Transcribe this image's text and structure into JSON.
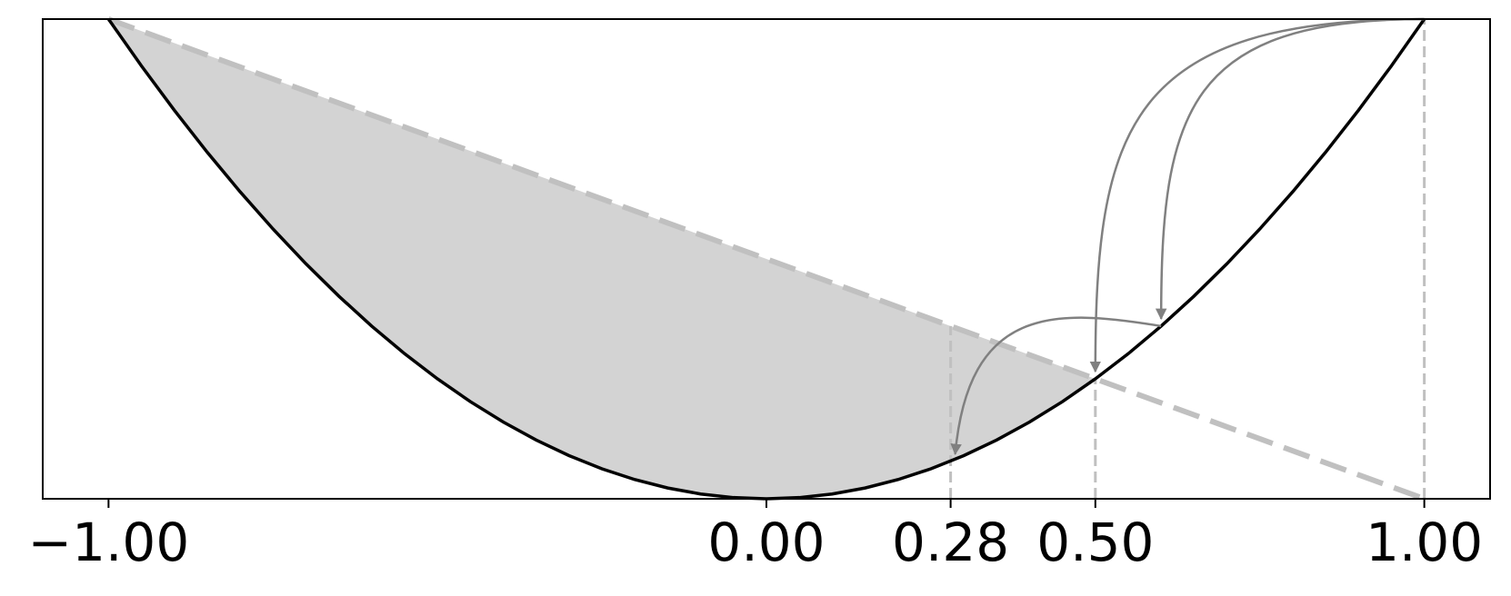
{
  "chart_data": {
    "type": "line",
    "x": [
      -1,
      -0.95,
      -0.9,
      -0.85,
      -0.8,
      -0.75,
      -0.7,
      -0.65,
      -0.6,
      -0.55,
      -0.5,
      -0.45,
      -0.4,
      -0.35,
      -0.3,
      -0.25,
      -0.2,
      -0.15,
      -0.1,
      -0.05,
      0,
      0.05,
      0.1,
      0.15,
      0.2,
      0.25,
      0.3,
      0.35,
      0.4,
      0.45,
      0.5,
      0.55,
      0.6,
      0.65,
      0.7,
      0.75,
      0.8,
      0.85,
      0.9,
      0.95,
      1
    ],
    "series": [
      {
        "color": "#000000",
        "values": [
          1,
          0.9025,
          0.81,
          0.7225,
          0.64,
          0.5625,
          0.49,
          0.4225,
          0.36,
          0.3025,
          0.25,
          0.2025,
          0.16,
          0.1225,
          0.09,
          0.0625,
          0.04,
          0.0225,
          0.01,
          0.0025,
          0,
          0.0025,
          0.01,
          0.0225,
          0.04,
          0.0625,
          0.09,
          0.1225,
          0.16,
          0.2025,
          0.25,
          0.3025,
          0.36,
          0.4225,
          0.49,
          0.5625,
          0.64,
          0.7225,
          0.81,
          0.9025,
          1
        ]
      }
    ],
    "chord": {
      "x": [
        -1,
        1
      ],
      "y": [
        1,
        0
      ],
      "color": "#c0c0c0"
    },
    "fill_color": "#d3d3d3",
    "vlines": [
      {
        "x": 0.28,
        "y": 0.36
      },
      {
        "x": 0.5,
        "y": 0.25
      },
      {
        "x": 1,
        "y": 1
      }
    ],
    "arrows": [
      {
        "from": [
          1,
          1
        ],
        "to": [
          0.6,
          0.36
        ]
      },
      {
        "from": [
          1,
          1
        ],
        "to": [
          0.5,
          0.25
        ]
      },
      {
        "from": [
          0.6,
          0.36
        ],
        "to": [
          0.28,
          0.078
        ]
      }
    ],
    "arrow_color": "#808080",
    "xlim": [
      -1.1,
      1.1
    ],
    "ylim": [
      0,
      1
    ],
    "xticks": [
      {
        "value": -1,
        "label": "−1.00"
      },
      {
        "value": 0,
        "label": "0.00"
      },
      {
        "value": 0.28,
        "label": "0.28"
      },
      {
        "value": 0.5,
        "label": "0.50"
      },
      {
        "value": 1,
        "label": "1.00"
      }
    ]
  }
}
